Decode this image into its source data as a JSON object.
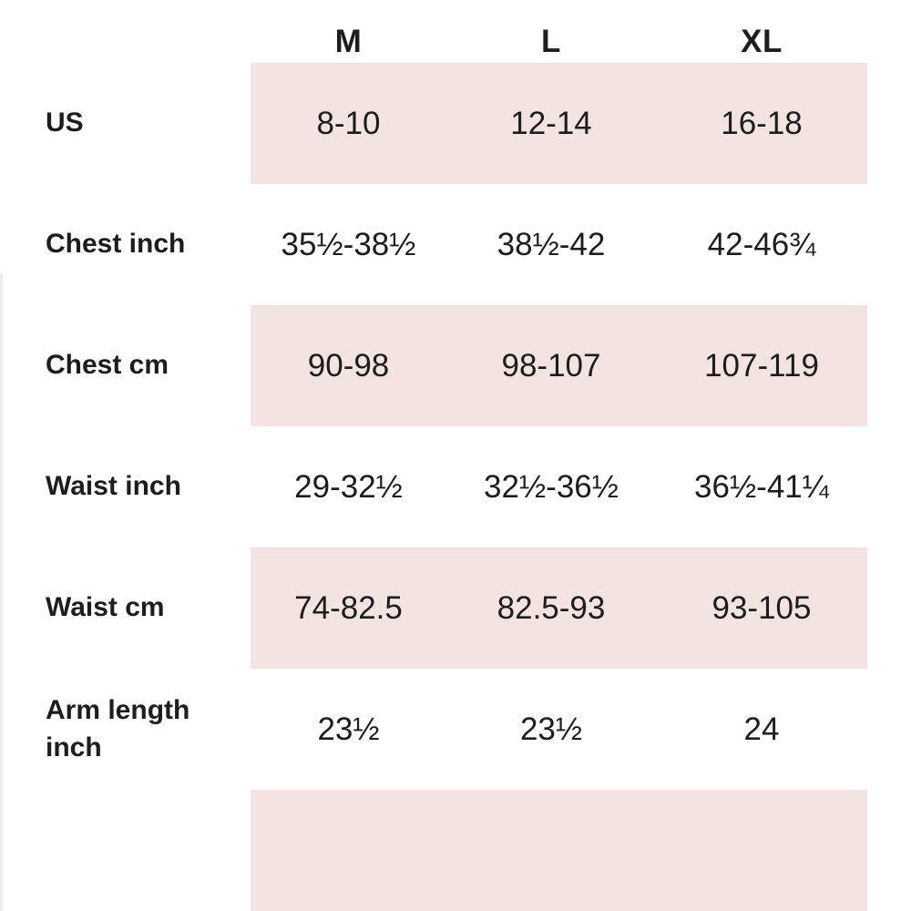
{
  "table": {
    "columns": [
      "M",
      "L",
      "XL"
    ],
    "rows": [
      {
        "label": "US",
        "values": [
          "8-10",
          "12-14",
          "16-18"
        ]
      },
      {
        "label": "Chest inch",
        "values": [
          "35½-38½",
          "38½-42",
          "42-46¾"
        ]
      },
      {
        "label": "Chest cm",
        "values": [
          "90-98",
          "98-107",
          "107-119"
        ]
      },
      {
        "label": "Waist inch",
        "values": [
          "29-32½",
          "32½-36½",
          "36½-41¼"
        ]
      },
      {
        "label": "Waist cm",
        "values": [
          "74-82.5",
          "82.5-93",
          "93-105"
        ]
      },
      {
        "label": "Arm length inch",
        "values": [
          "23½",
          "23½",
          "24"
        ]
      },
      {
        "label": "",
        "values": [
          "",
          "",
          ""
        ]
      }
    ],
    "colors": {
      "shaded_row_bg": "#f3e4e1",
      "background": "#ffffff",
      "text": "#1d1d1d"
    }
  }
}
